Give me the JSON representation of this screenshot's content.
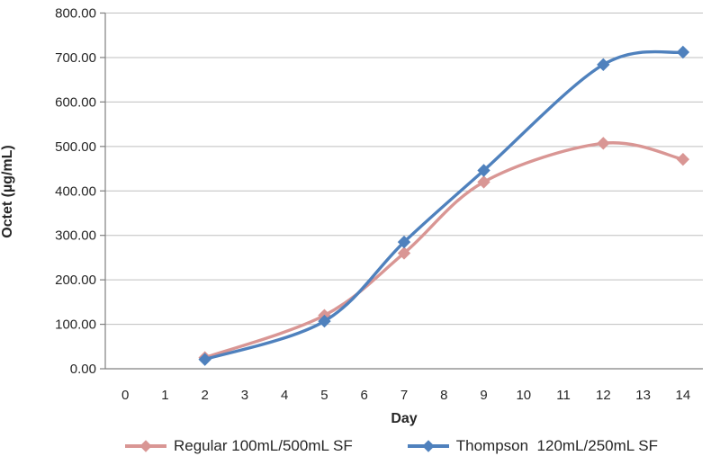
{
  "chart_data": {
    "type": "line",
    "title": "",
    "xlabel": "Day",
    "ylabel": "Octet (µg/mL)",
    "x_tick_labels": [
      "0",
      "1",
      "2",
      "3",
      "4",
      "5",
      "6",
      "7",
      "8",
      "9",
      "10",
      "11",
      "12",
      "13",
      "14"
    ],
    "y_tick_labels": [
      "0.00",
      "100.00",
      "200.00",
      "300.00",
      "400.00",
      "500.00",
      "600.00",
      "700.00",
      "800.00"
    ],
    "y_tick_values": [
      0,
      100,
      200,
      300,
      400,
      500,
      600,
      700,
      800
    ],
    "ylim": [
      0,
      800
    ],
    "num_categories": 15,
    "grid": true,
    "smooth_lines": true,
    "legend_position": "bottom",
    "series": [
      {
        "name": "Regular 100mL/500mL SF",
        "color": "#D99694",
        "marker": "diamond",
        "x": [
          2,
          5,
          7,
          9,
          12,
          14
        ],
        "values": [
          25,
          120,
          260,
          420,
          507,
          471
        ]
      },
      {
        "name": "Thompson  120mL/250mL SF",
        "color": "#4F81BD",
        "marker": "diamond",
        "x": [
          2,
          5,
          7,
          9,
          12,
          14
        ],
        "values": [
          21,
          107,
          285,
          446,
          684,
          712
        ]
      }
    ],
    "colors": {
      "gridline": "#BFBFBF",
      "axis_line": "#808080",
      "tick_text": "#262626"
    }
  }
}
